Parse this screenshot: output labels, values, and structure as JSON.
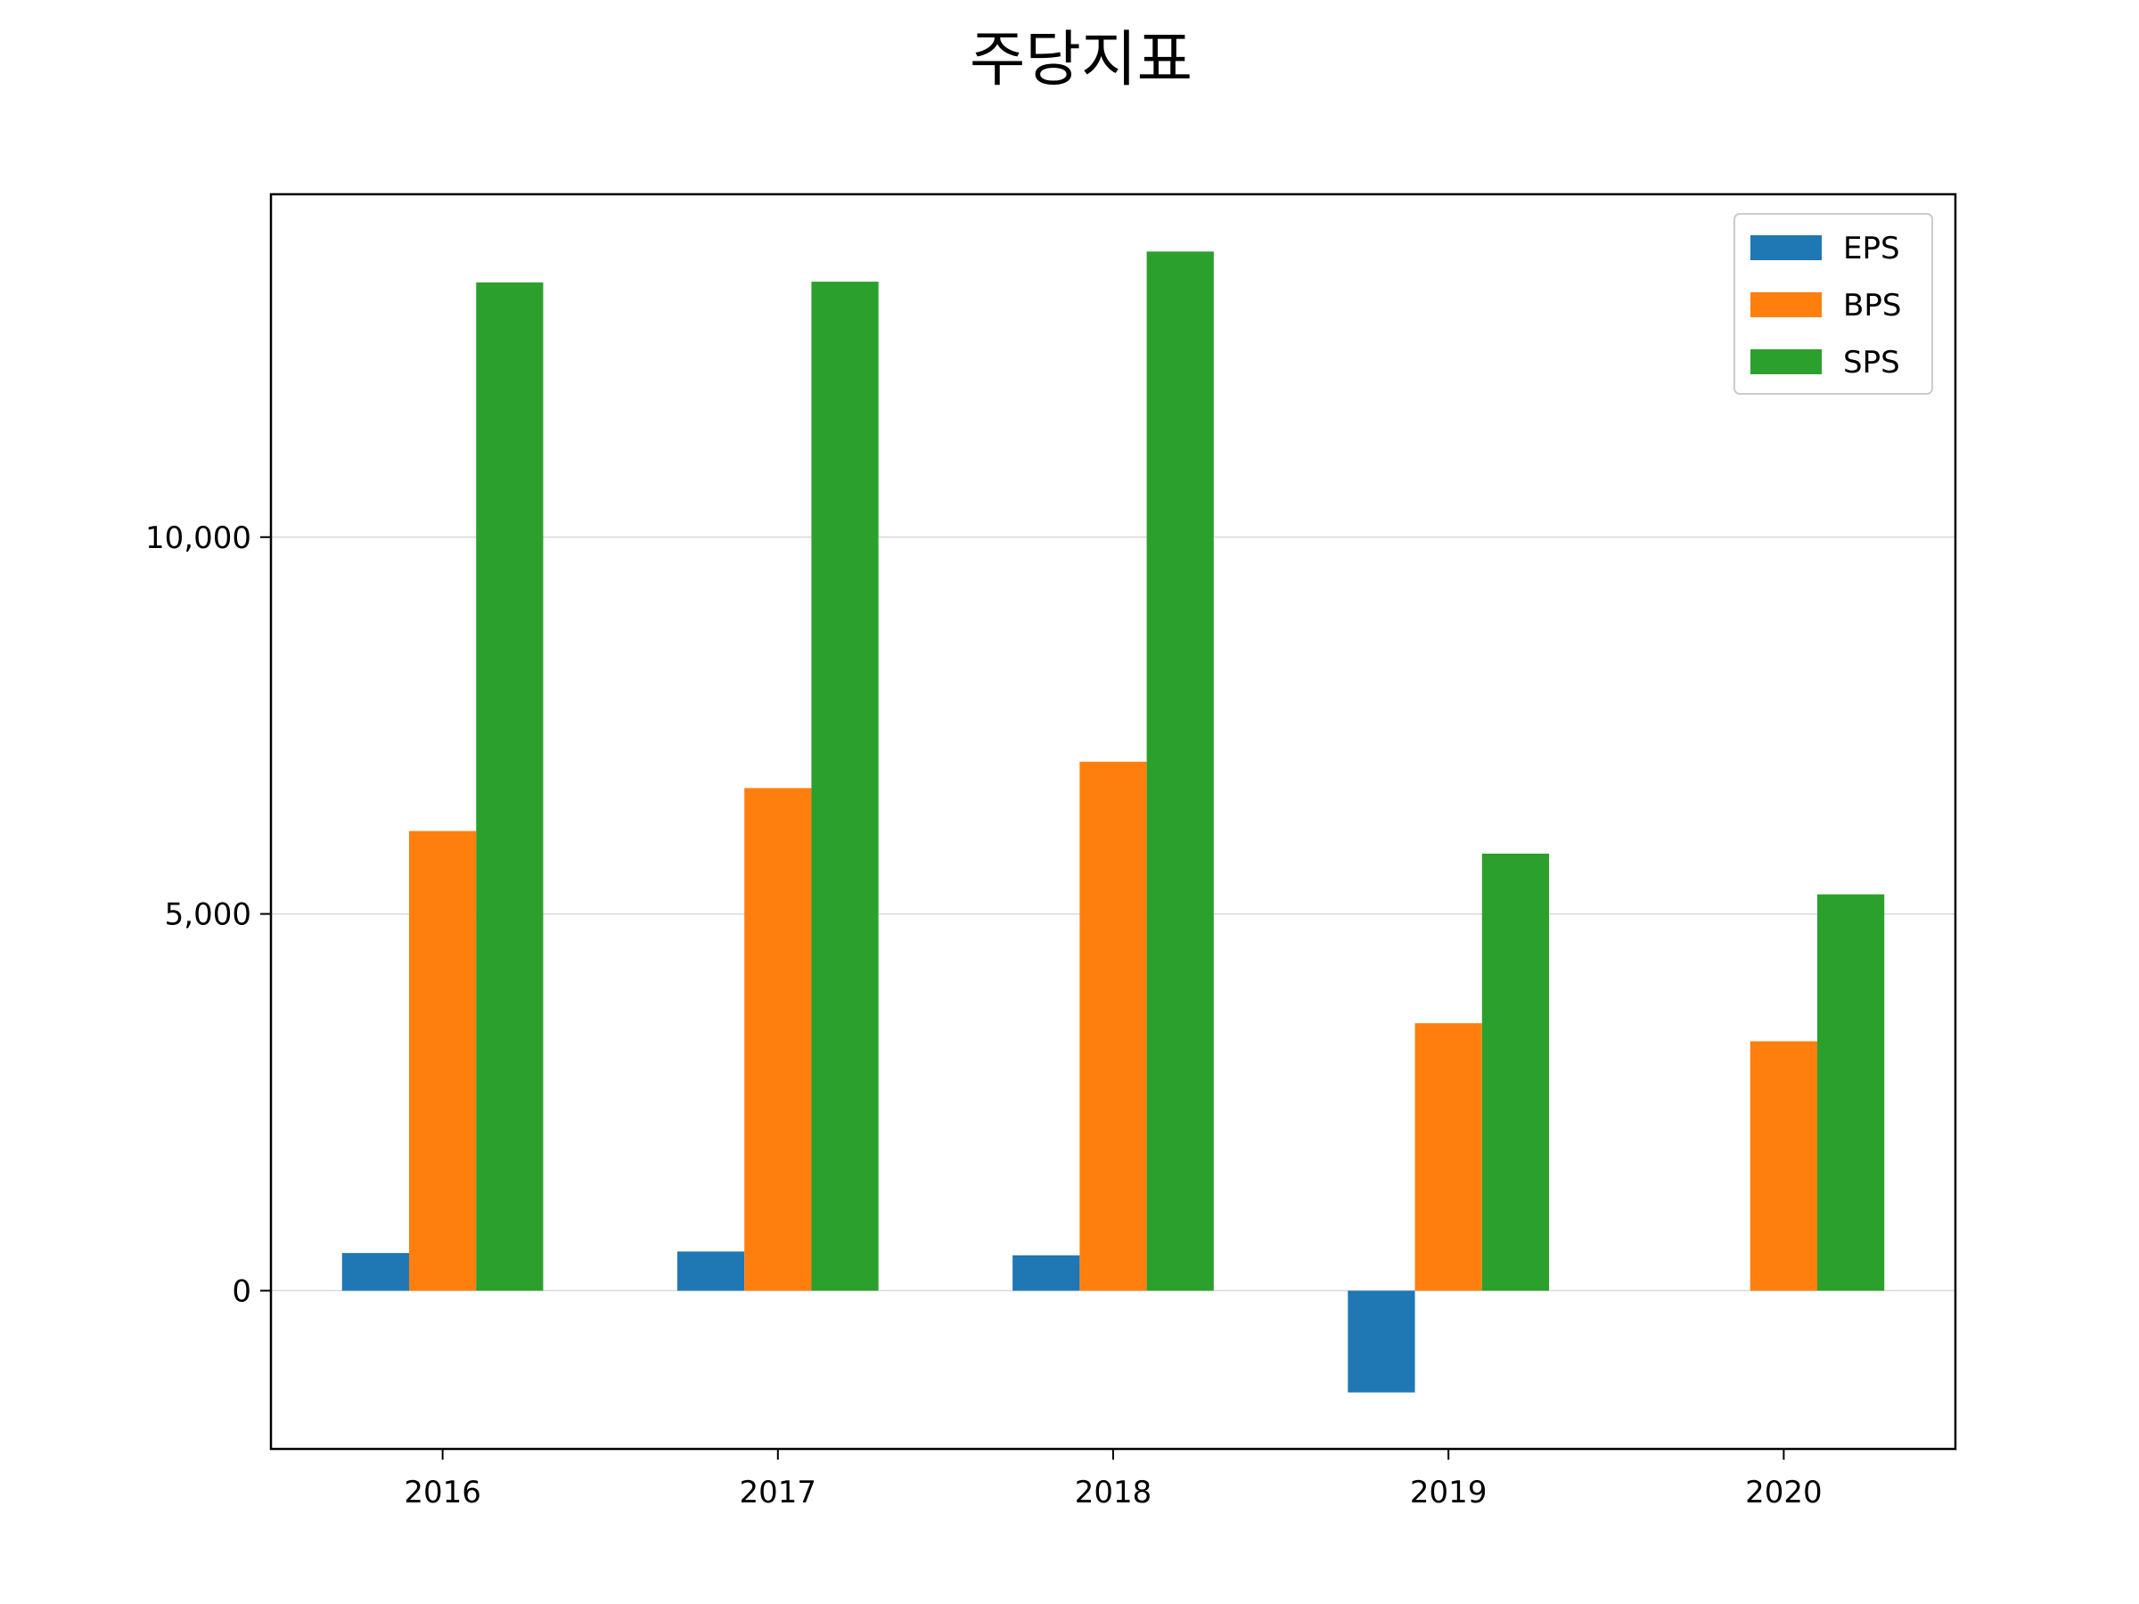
{
  "chart_data": {
    "type": "bar",
    "title": "주당지표",
    "xlabel": "",
    "ylabel": "",
    "categories": [
      "2016",
      "2017",
      "2018",
      "2019",
      "2020"
    ],
    "series": [
      {
        "name": "EPS",
        "color": "#1f77b4",
        "values": [
          500,
          520,
          470,
          -1350,
          null
        ]
      },
      {
        "name": "BPS",
        "color": "#ff7f0e",
        "values": [
          6100,
          6670,
          7020,
          3550,
          3310
        ]
      },
      {
        "name": "SPS",
        "color": "#2ca02c",
        "values": [
          13380,
          13390,
          13790,
          5800,
          5260
        ]
      }
    ],
    "ylim": [
      -2100,
      14550
    ],
    "yticks": [
      0,
      5000,
      10000
    ],
    "ytick_labels": [
      "0",
      "5,000",
      "10,000"
    ],
    "grid": {
      "y": true,
      "x": false,
      "color": "#d9d9d9"
    },
    "legend": {
      "position": "top-right"
    }
  }
}
